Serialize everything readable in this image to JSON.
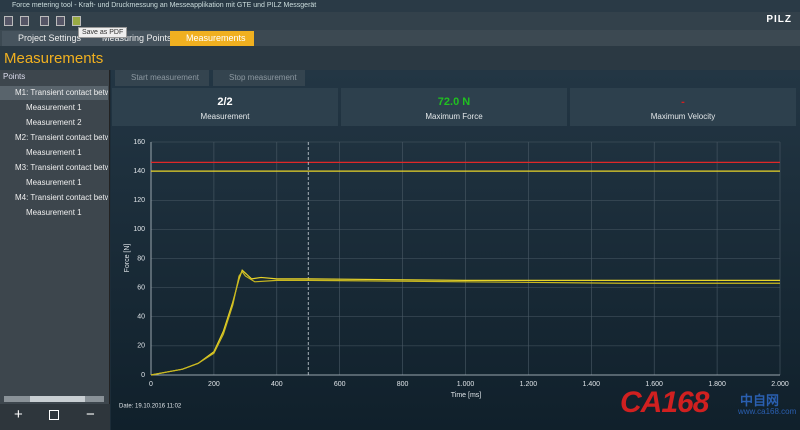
{
  "window": {
    "title": "Force metering tool - Kraft- und Druckmessung an Messeapplikation mit GTE und PILZ Messgerät",
    "logo": "PILZ",
    "tooltip": "Save as PDF"
  },
  "tabs": [
    "Project Settings",
    "Measuring Points",
    "Measurements"
  ],
  "heading": "Measurements",
  "sidebar": {
    "title": "Points",
    "tree": [
      {
        "label": "M1: Transient contact betw",
        "children": [
          "Measurement 1",
          "Measurement 2"
        ]
      },
      {
        "label": "M2: Transient contact betw",
        "children": [
          "Measurement 1"
        ]
      },
      {
        "label": "M3: Transient contact betw",
        "children": [
          "Measurement 1"
        ]
      },
      {
        "label": "M4: Transient contact betw",
        "children": [
          "Measurement 1"
        ]
      }
    ]
  },
  "buttons": [
    "Start measurement",
    "Stop measurement"
  ],
  "cards": [
    {
      "value": "2/2",
      "label": "Measurement"
    },
    {
      "value": "72.0 N",
      "label": "Maximum Force"
    },
    {
      "value": "-",
      "label": "Maximum Velocity"
    }
  ],
  "chart_data": {
    "type": "line",
    "y_label": "Force [N]",
    "x_label": "Time [ms]",
    "date": "Date: 19.10.2016 11:02",
    "xlim": [
      0,
      2000
    ],
    "ylim": [
      0,
      160
    ],
    "xticks": [
      0,
      200,
      400,
      600,
      800,
      {
        "value": 1000,
        "label": "1.000"
      },
      {
        "value": 1200,
        "label": "1.200"
      },
      {
        "value": 1400,
        "label": "1.400"
      },
      {
        "value": 1600,
        "label": "1.600"
      },
      {
        "value": 1800,
        "label": "1.800"
      },
      {
        "value": 2000,
        "label": "2.000"
      }
    ],
    "yticks": [
      0,
      20,
      40,
      60,
      80,
      100,
      120,
      140,
      160
    ],
    "grid": true,
    "reference_lines": [
      {
        "value": 146,
        "color": "#e02828"
      },
      {
        "value": 140,
        "color": "#e8d428"
      }
    ],
    "marker_x": 500,
    "series": [
      {
        "color": "#e8d428",
        "x": [
          0,
          50,
          100,
          150,
          200,
          230,
          260,
          280,
          290,
          300,
          320,
          350,
          400,
          500,
          1000,
          1500,
          2000
        ],
        "values": [
          0,
          2,
          4,
          8,
          16,
          30,
          50,
          66,
          72,
          70,
          66,
          67,
          66,
          66,
          65,
          65,
          65
        ]
      },
      {
        "color": "#c9b820",
        "x": [
          0,
          50,
          100,
          150,
          200,
          230,
          260,
          280,
          290,
          300,
          330,
          400,
          500,
          1000,
          1500,
          2000
        ],
        "values": [
          0,
          2,
          4,
          8,
          15,
          28,
          48,
          68,
          71,
          68,
          64,
          65,
          65,
          64,
          63,
          63
        ]
      }
    ]
  },
  "watermark": {
    "brand": "CA168",
    "site": "中自网",
    "url": "www.ca168.com"
  }
}
